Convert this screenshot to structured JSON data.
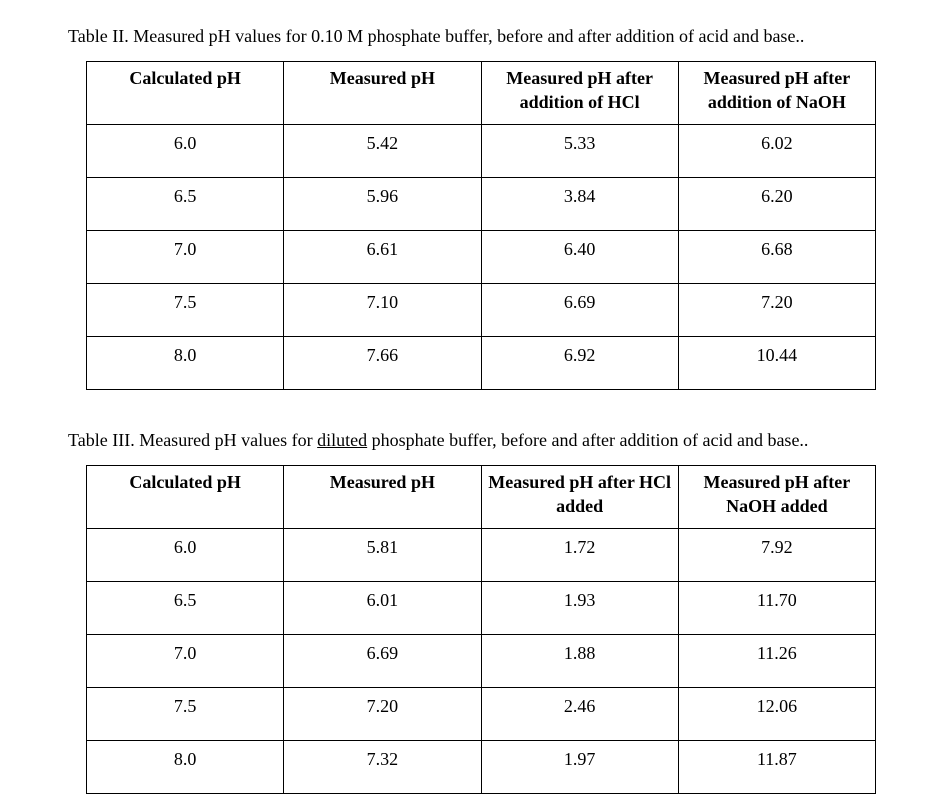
{
  "text_color": "#000000",
  "background_color": "#ffffff",
  "border_color": "#000000",
  "font_family": "Times New Roman",
  "caption_fontsize": 18,
  "cell_fontsize": 18,
  "table2": {
    "caption": "Table II. Measured pH values for 0.10 M phosphate buffer, before and after addition of acid and base..",
    "headers": [
      "Calculated pH",
      "Measured pH",
      "Measured pH after addition of HCl",
      "Measured pH after addition of NaOH"
    ],
    "rows": [
      [
        "6.0",
        "5.42",
        "5.33",
        "6.02"
      ],
      [
        "6.5",
        "5.96",
        "3.84",
        "6.20"
      ],
      [
        "7.0",
        "6.61",
        "6.40",
        "6.68"
      ],
      [
        "7.5",
        "7.10",
        "6.69",
        "7.20"
      ],
      [
        "8.0",
        "7.66",
        "6.92",
        "10.44"
      ]
    ]
  },
  "table3": {
    "caption_pre": "Table III. Measured pH values for ",
    "caption_underlined": "diluted",
    "caption_post": " phosphate buffer, before and after addition of acid and base..",
    "headers": [
      "Calculated pH",
      "Measured pH",
      "Measured pH after HCl added",
      "Measured pH after NaOH added"
    ],
    "rows": [
      [
        "6.0",
        "5.81",
        "1.72",
        "7.92"
      ],
      [
        "6.5",
        "6.01",
        "1.93",
        "11.70"
      ],
      [
        "7.0",
        "6.69",
        "1.88",
        "11.26"
      ],
      [
        "7.5",
        "7.20",
        "2.46",
        "12.06"
      ],
      [
        "8.0",
        "7.32",
        "1.97",
        "11.87"
      ]
    ]
  }
}
